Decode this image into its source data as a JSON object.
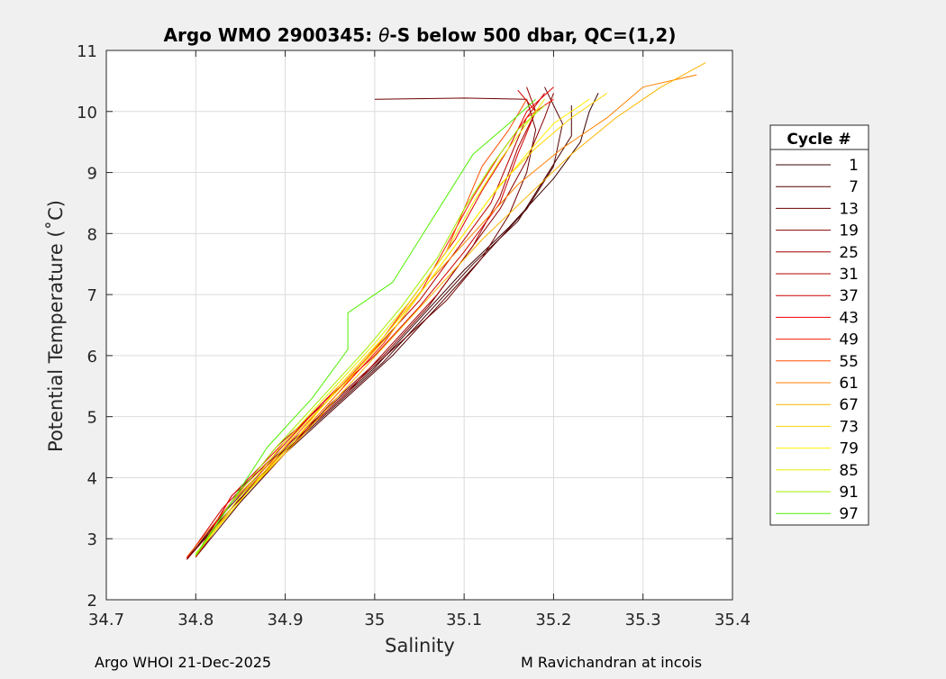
{
  "chart_data": {
    "type": "line",
    "title_prefix": "Argo WMO 2900345: ",
    "title_theta": "θ",
    "title_suffix": "-S below 500 dbar,  QC=(1,2)",
    "xlabel": "Salinity",
    "ylabel": "Potential Temperature (˚C)",
    "xlim": [
      34.7,
      35.4
    ],
    "ylim": [
      2,
      11
    ],
    "xticks": [
      "34.7",
      "34.8",
      "34.9",
      "35",
      "35.1",
      "35.2",
      "35.3",
      "35.4"
    ],
    "yticks": [
      "2",
      "3",
      "4",
      "5",
      "6",
      "7",
      "8",
      "9",
      "10",
      "11"
    ],
    "grid": true,
    "legend": {
      "title": "Cycle #",
      "placement": "right-outside",
      "entries": [
        {
          "label": "1",
          "color": "#3c0000"
        },
        {
          "label": "7",
          "color": "#550000"
        },
        {
          "label": "13",
          "color": "#6e0000"
        },
        {
          "label": "19",
          "color": "#870000"
        },
        {
          "label": "25",
          "color": "#a00000"
        },
        {
          "label": "31",
          "color": "#b90000"
        },
        {
          "label": "37",
          "color": "#d20000"
        },
        {
          "label": "43",
          "color": "#eb0000"
        },
        {
          "label": "49",
          "color": "#ff1e00"
        },
        {
          "label": "55",
          "color": "#ff5000"
        },
        {
          "label": "61",
          "color": "#ff8200"
        },
        {
          "label": "67",
          "color": "#ffb400"
        },
        {
          "label": "73",
          "color": "#ffd700"
        },
        {
          "label": "79",
          "color": "#fff000"
        },
        {
          "label": "85",
          "color": "#e6f000"
        },
        {
          "label": "91",
          "color": "#a0f000"
        },
        {
          "label": "97",
          "color": "#50f000"
        }
      ]
    },
    "series": [
      {
        "color": "#3c0000",
        "points": [
          [
            34.79,
            2.66
          ],
          [
            34.83,
            3.4
          ],
          [
            34.88,
            4.2
          ],
          [
            34.94,
            5.0
          ],
          [
            35.0,
            5.8
          ],
          [
            35.05,
            6.6
          ],
          [
            35.1,
            7.4
          ],
          [
            35.15,
            8.1
          ],
          [
            35.2,
            8.9
          ],
          [
            35.23,
            9.5
          ],
          [
            35.24,
            10.0
          ],
          [
            35.25,
            10.3
          ]
        ]
      },
      {
        "color": "#4a0000",
        "points": [
          [
            34.79,
            2.68
          ],
          [
            34.84,
            3.5
          ],
          [
            34.89,
            4.3
          ],
          [
            34.95,
            5.1
          ],
          [
            35.01,
            5.9
          ],
          [
            35.06,
            6.7
          ],
          [
            35.11,
            7.5
          ],
          [
            35.16,
            8.2
          ],
          [
            35.19,
            8.9
          ],
          [
            35.22,
            9.6
          ],
          [
            35.22,
            10.1
          ]
        ]
      },
      {
        "color": "#550000",
        "points": [
          [
            34.8,
            2.7
          ],
          [
            34.85,
            3.6
          ],
          [
            34.9,
            4.4
          ],
          [
            34.96,
            5.2
          ],
          [
            35.02,
            6.0
          ],
          [
            35.07,
            6.8
          ],
          [
            35.12,
            7.6
          ],
          [
            35.17,
            8.4
          ],
          [
            35.2,
            9.1
          ],
          [
            35.21,
            9.8
          ],
          [
            35.19,
            10.4
          ]
        ]
      },
      {
        "color": "#6e0000",
        "points": [
          [
            34.8,
            2.72
          ],
          [
            34.84,
            3.7
          ],
          [
            34.9,
            4.5
          ],
          [
            34.96,
            5.3
          ],
          [
            35.02,
            6.1
          ],
          [
            35.08,
            6.9
          ],
          [
            35.12,
            7.6
          ],
          [
            35.15,
            8.3
          ],
          [
            35.17,
            9.0
          ],
          [
            35.18,
            9.7
          ],
          [
            35.17,
            10.2
          ],
          [
            35.1,
            10.22
          ],
          [
            35.0,
            10.2
          ]
        ]
      },
      {
        "color": "#870000",
        "points": [
          [
            34.79,
            2.66
          ],
          [
            34.84,
            3.5
          ],
          [
            34.9,
            4.4
          ],
          [
            34.95,
            5.2
          ],
          [
            35.01,
            6.0
          ],
          [
            35.06,
            6.8
          ],
          [
            35.1,
            7.6
          ],
          [
            35.14,
            8.4
          ],
          [
            35.17,
            9.2
          ],
          [
            35.19,
            9.9
          ],
          [
            35.2,
            10.3
          ]
        ]
      },
      {
        "color": "#a00000",
        "points": [
          [
            34.8,
            2.7
          ],
          [
            34.85,
            3.7
          ],
          [
            34.91,
            4.6
          ],
          [
            34.97,
            5.4
          ],
          [
            35.02,
            6.2
          ],
          [
            35.07,
            7.0
          ],
          [
            35.11,
            7.8
          ],
          [
            35.14,
            8.6
          ],
          [
            35.16,
            9.4
          ],
          [
            35.18,
            10.0
          ],
          [
            35.17,
            10.4
          ]
        ]
      },
      {
        "color": "#b90000",
        "points": [
          [
            34.8,
            2.7
          ],
          [
            34.84,
            3.6
          ],
          [
            34.89,
            4.5
          ],
          [
            34.95,
            5.3
          ],
          [
            35.0,
            6.1
          ],
          [
            35.05,
            6.9
          ],
          [
            35.09,
            7.7
          ],
          [
            35.13,
            8.5
          ],
          [
            35.15,
            9.2
          ],
          [
            35.17,
            9.9
          ],
          [
            35.19,
            10.3
          ]
        ]
      },
      {
        "color": "#d20000",
        "points": [
          [
            34.79,
            2.68
          ],
          [
            34.83,
            3.5
          ],
          [
            34.89,
            4.4
          ],
          [
            34.94,
            5.2
          ],
          [
            35.0,
            6.0
          ],
          [
            35.05,
            6.8
          ],
          [
            35.1,
            7.7
          ],
          [
            35.14,
            8.5
          ],
          [
            35.16,
            9.3
          ],
          [
            35.18,
            10.0
          ],
          [
            35.16,
            10.35
          ]
        ]
      },
      {
        "color": "#eb0000",
        "points": [
          [
            34.8,
            2.7
          ],
          [
            34.84,
            3.7
          ],
          [
            34.9,
            4.6
          ],
          [
            34.96,
            5.5
          ],
          [
            35.01,
            6.3
          ],
          [
            35.05,
            7.1
          ],
          [
            35.09,
            7.9
          ],
          [
            35.12,
            8.7
          ],
          [
            35.15,
            9.4
          ],
          [
            35.17,
            10.0
          ],
          [
            35.2,
            10.4
          ]
        ]
      },
      {
        "color": "#ff1e00",
        "points": [
          [
            34.8,
            2.72
          ],
          [
            34.85,
            3.7
          ],
          [
            34.91,
            4.6
          ],
          [
            34.96,
            5.4
          ],
          [
            35.01,
            6.2
          ],
          [
            35.05,
            7.0
          ],
          [
            35.08,
            7.8
          ],
          [
            35.11,
            8.6
          ],
          [
            35.14,
            9.3
          ],
          [
            35.17,
            9.9
          ],
          [
            35.2,
            10.2
          ]
        ]
      },
      {
        "color": "#ff5000",
        "points": [
          [
            34.79,
            2.7
          ],
          [
            34.84,
            3.6
          ],
          [
            34.9,
            4.5
          ],
          [
            34.95,
            5.3
          ],
          [
            35.0,
            6.1
          ],
          [
            35.04,
            6.9
          ],
          [
            35.08,
            7.7
          ],
          [
            35.1,
            8.4
          ],
          [
            35.12,
            9.1
          ],
          [
            35.15,
            9.7
          ],
          [
            35.17,
            10.2
          ]
        ]
      },
      {
        "color": "#ff8200",
        "points": [
          [
            34.8,
            2.72
          ],
          [
            34.85,
            3.7
          ],
          [
            34.91,
            4.6
          ],
          [
            34.96,
            5.4
          ],
          [
            35.01,
            6.3
          ],
          [
            35.06,
            7.2
          ],
          [
            35.11,
            8.0
          ],
          [
            35.16,
            8.8
          ],
          [
            35.21,
            9.4
          ],
          [
            35.26,
            9.9
          ],
          [
            35.3,
            10.4
          ],
          [
            35.36,
            10.6
          ]
        ]
      },
      {
        "color": "#ffb400",
        "points": [
          [
            34.8,
            2.75
          ],
          [
            34.86,
            3.8
          ],
          [
            34.92,
            4.7
          ],
          [
            34.97,
            5.5
          ],
          [
            35.02,
            6.3
          ],
          [
            35.07,
            7.1
          ],
          [
            35.12,
            7.9
          ],
          [
            35.17,
            8.6
          ],
          [
            35.22,
            9.3
          ],
          [
            35.27,
            9.9
          ],
          [
            35.32,
            10.4
          ],
          [
            35.37,
            10.8
          ]
        ]
      },
      {
        "color": "#ffd700",
        "points": [
          [
            34.8,
            2.75
          ],
          [
            34.86,
            3.8
          ],
          [
            34.91,
            4.7
          ],
          [
            34.97,
            5.6
          ],
          [
            35.02,
            6.4
          ],
          [
            35.06,
            7.2
          ],
          [
            35.1,
            8.0
          ],
          [
            35.14,
            8.8
          ],
          [
            35.18,
            9.4
          ],
          [
            35.22,
            9.9
          ],
          [
            35.26,
            10.3
          ]
        ]
      },
      {
        "color": "#fff000",
        "points": [
          [
            34.8,
            2.76
          ],
          [
            34.86,
            3.8
          ],
          [
            34.91,
            4.6
          ],
          [
            34.96,
            5.5
          ],
          [
            35.01,
            6.3
          ],
          [
            35.05,
            7.0
          ],
          [
            35.09,
            7.8
          ],
          [
            35.13,
            8.6
          ],
          [
            35.17,
            9.3
          ],
          [
            35.2,
            9.8
          ],
          [
            35.24,
            10.2
          ]
        ]
      },
      {
        "color": "#e6f000",
        "points": [
          [
            34.8,
            2.74
          ],
          [
            34.85,
            3.7
          ],
          [
            34.9,
            4.6
          ],
          [
            34.95,
            5.4
          ],
          [
            35.0,
            6.2
          ],
          [
            35.04,
            6.9
          ],
          [
            35.08,
            7.7
          ],
          [
            35.11,
            8.5
          ],
          [
            35.14,
            9.2
          ],
          [
            35.17,
            9.8
          ],
          [
            35.19,
            10.2
          ]
        ]
      },
      {
        "color": "#a0f000",
        "points": [
          [
            34.8,
            2.74
          ],
          [
            34.84,
            3.6
          ],
          [
            34.89,
            4.5
          ],
          [
            34.94,
            5.3
          ],
          [
            34.99,
            6.1
          ],
          [
            35.03,
            6.8
          ],
          [
            35.07,
            7.6
          ],
          [
            35.1,
            8.4
          ],
          [
            35.13,
            9.1
          ],
          [
            35.16,
            9.7
          ],
          [
            35.19,
            10.1
          ]
        ]
      },
      {
        "color": "#50f000",
        "points": [
          [
            34.8,
            2.72
          ],
          [
            34.84,
            3.6
          ],
          [
            34.88,
            4.5
          ],
          [
            34.93,
            5.3
          ],
          [
            34.97,
            6.1
          ],
          [
            34.97,
            6.7
          ],
          [
            35.02,
            7.2
          ],
          [
            35.05,
            7.9
          ],
          [
            35.08,
            8.6
          ],
          [
            35.11,
            9.3
          ],
          [
            35.15,
            9.8
          ],
          [
            35.18,
            10.2
          ]
        ]
      }
    ]
  },
  "footer": {
    "left": "Argo WHOI 21-Dec-2025",
    "right": "M Ravichandran at incois"
  }
}
